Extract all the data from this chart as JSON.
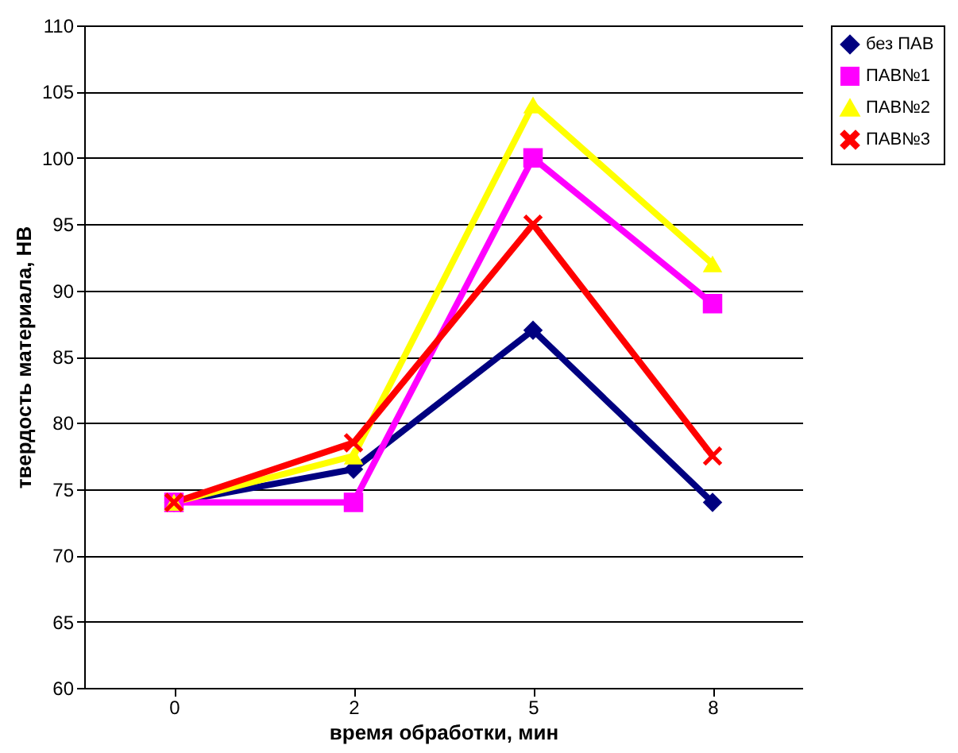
{
  "chart_data": {
    "type": "line",
    "xlabel": "время обработки, мин",
    "ylabel": "твердость материала, НВ",
    "categories": [
      "0",
      "2",
      "5",
      "8"
    ],
    "series": [
      {
        "name": "без ПАВ",
        "color": "#000080",
        "marker": "diamond",
        "values": [
          74,
          76.5,
          87,
          74
        ]
      },
      {
        "name": "ПАВ№1",
        "color": "#ff00ff",
        "marker": "square",
        "values": [
          74,
          74,
          100,
          89
        ]
      },
      {
        "name": "ПАВ№2",
        "color": "#ffff00",
        "marker": "triangle",
        "values": [
          74,
          77.5,
          104,
          92
        ]
      },
      {
        "name": "ПАВ№3",
        "color": "#ff0000",
        "marker": "cross",
        "values": [
          74,
          78.5,
          95,
          77.5
        ]
      }
    ],
    "ylim": [
      60,
      110
    ],
    "yticks": [
      60,
      65,
      70,
      75,
      80,
      85,
      90,
      95,
      100,
      105,
      110
    ],
    "grid": "y",
    "legend": "right"
  }
}
